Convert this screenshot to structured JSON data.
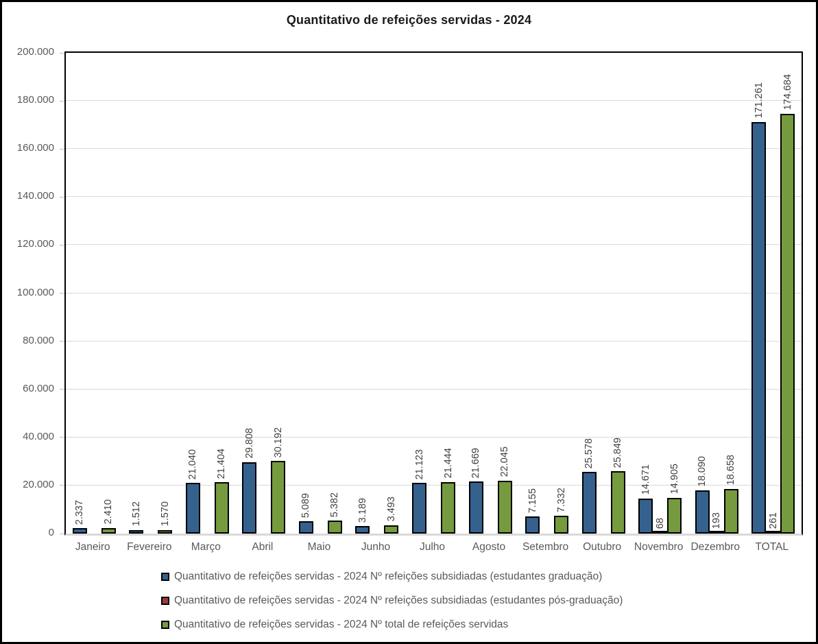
{
  "chart_data": {
    "type": "bar",
    "title": "Quantitativo de refeições servidas - 2024",
    "categories": [
      "Janeiro",
      "Fevereiro",
      "Março",
      "Abril",
      "Maio",
      "Junho",
      "Julho",
      "Agosto",
      "Setembro",
      "Outubro",
      "Novembro",
      "Dezembro",
      "TOTAL"
    ],
    "series": [
      {
        "name": "Quantitativo de refeições servidas - 2024 Nº refeições subsidiadas (estudantes graduação)",
        "color": "#35618F",
        "values": [
          2337,
          1512,
          21040,
          29808,
          5089,
          3189,
          21123,
          21669,
          7155,
          25578,
          14671,
          18090,
          171261
        ],
        "labels": [
          "2.337",
          "1.512",
          "21.040",
          "29.808",
          "5.089",
          "3.189",
          "21.123",
          "21.669",
          "7.155",
          "25.578",
          "14.671",
          "18.090",
          "171.261"
        ]
      },
      {
        "name": "Quantitativo de refeições servidas - 2024 Nº refeições subsidiadas (estudantes pós-graduação)",
        "color": "#9E3B38",
        "values": [
          null,
          null,
          null,
          null,
          null,
          null,
          null,
          null,
          null,
          null,
          68,
          193,
          261
        ],
        "labels": [
          null,
          null,
          null,
          null,
          null,
          null,
          null,
          null,
          null,
          null,
          "68",
          "193",
          "261"
        ]
      },
      {
        "name": "Quantitativo de refeições servidas - 2024 Nº total de refeições servidas",
        "color": "#769B3E",
        "values": [
          2410,
          1570,
          21404,
          30192,
          5382,
          3493,
          21444,
          22045,
          7332,
          25849,
          14905,
          18658,
          174684
        ],
        "labels": [
          "2.410",
          "1.570",
          "21.404",
          "30.192",
          "5.382",
          "3.493",
          "21.444",
          "22.045",
          "7.332",
          "25.849",
          "14.905",
          "18.658",
          "174.684"
        ]
      }
    ],
    "y_axis": {
      "min": 0,
      "max": 200000,
      "tick_step": 20000,
      "tick_labels": [
        "0",
        "20.000",
        "40.000",
        "60.000",
        "80.000",
        "100.000",
        "120.000",
        "140.000",
        "160.000",
        "180.000",
        "200.000"
      ]
    },
    "grid": true,
    "legend_position": "bottom-left",
    "colors": {
      "bar_border": "#000000",
      "gridline": "#D9D9D9",
      "axis_text": "#595959",
      "data_label_text": "#404040",
      "baseline_axis": "#D9D9D9"
    }
  }
}
